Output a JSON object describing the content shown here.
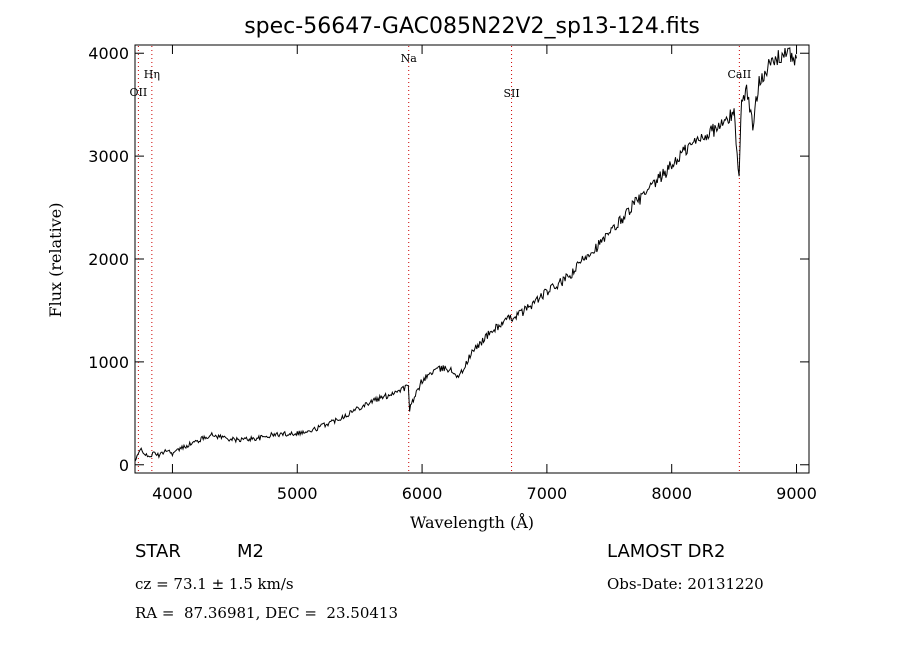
{
  "chart_data": {
    "type": "line",
    "title": "spec-56647-GAC085N22V2_sp13-124.fits",
    "xlabel": "Wavelength (Å)",
    "ylabel": "Flux (relative)",
    "xlim": [
      3700,
      9100
    ],
    "ylim": [
      -80,
      4080
    ],
    "xticks": [
      4000,
      5000,
      6000,
      7000,
      8000,
      9000
    ],
    "yticks": [
      0,
      1000,
      2000,
      3000,
      4000
    ],
    "xtick_labels": [
      "4000",
      "5000",
      "6000",
      "7000",
      "8000",
      "9000"
    ],
    "ytick_labels": [
      "0",
      "1000",
      "2000",
      "3000",
      "4000"
    ],
    "line_color": "#000000",
    "marker_color": "#cc0000",
    "grid": false,
    "series": [
      {
        "x": [
          3700,
          3750,
          3800,
          3850,
          3900,
          3950,
          4000,
          4100,
          4200,
          4300,
          4400,
          4500,
          4600,
          4700,
          4800,
          4900,
          5000,
          5100,
          5200,
          5300,
          5400,
          5500,
          5600,
          5700,
          5800,
          5890,
          5900,
          6000,
          6100,
          6200,
          6300,
          6400,
          6500,
          6600,
          6700,
          6800,
          6900,
          7000,
          7100,
          7200,
          7300,
          7400,
          7500,
          7600,
          7700,
          7800,
          7900,
          8000,
          8100,
          8200,
          8300,
          8400,
          8500,
          8540,
          8560,
          8600,
          8650,
          8700,
          8800,
          8900,
          9000
        ],
        "y": [
          30,
          160,
          70,
          110,
          90,
          150,
          110,
          180,
          230,
          290,
          270,
          240,
          250,
          260,
          290,
          300,
          310,
          320,
          380,
          430,
          490,
          560,
          620,
          660,
          720,
          760,
          540,
          820,
          920,
          940,
          860,
          1090,
          1230,
          1340,
          1420,
          1480,
          1580,
          1680,
          1760,
          1850,
          2020,
          2120,
          2240,
          2390,
          2540,
          2640,
          2780,
          2910,
          3050,
          3150,
          3230,
          3300,
          3420,
          2800,
          3550,
          3650,
          3280,
          3750,
          3900,
          4000,
          3950
        ]
      }
    ],
    "line_markers": [
      {
        "label": "Hη",
        "x": 3835
      },
      {
        "label": "OII",
        "x": 3727
      },
      {
        "label": "Na",
        "x": 5893
      },
      {
        "label": "SII",
        "x": 6717
      },
      {
        "label": "CaII",
        "x": 8542
      }
    ]
  },
  "info": {
    "object_class": "STAR",
    "subclass": "M2",
    "survey": "LAMOST DR2",
    "redshift_text": "cz = 73.1 ± 1.5 km/s",
    "obs_date": "Obs-Date: 20131220",
    "coords": "RA =  87.36981, DEC =  23.50413"
  }
}
